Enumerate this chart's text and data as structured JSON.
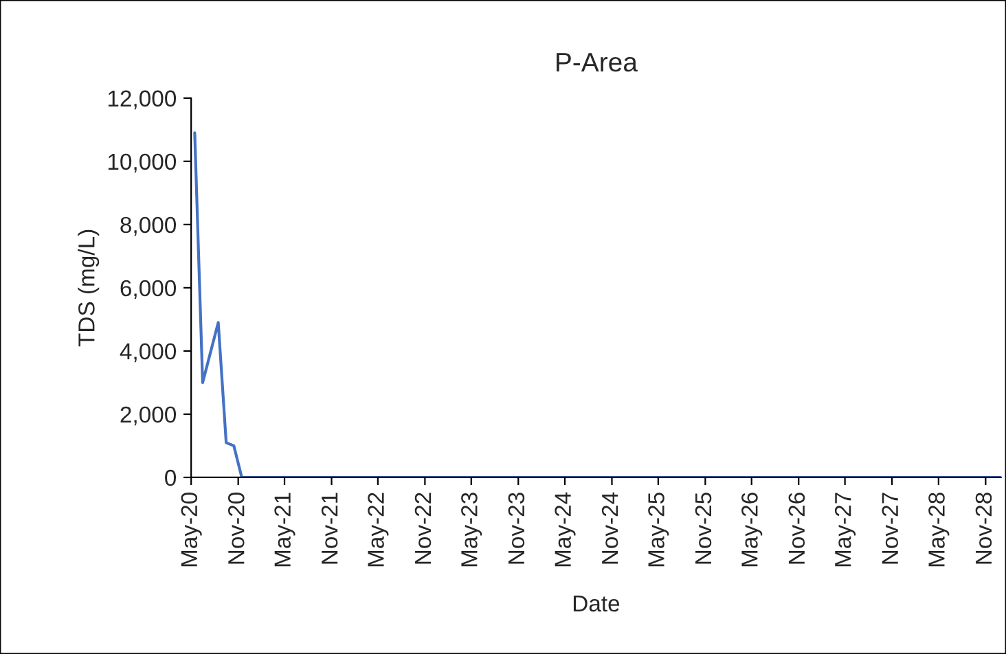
{
  "chart_data": {
    "type": "line",
    "title": "P-Area",
    "xlabel": "Date",
    "ylabel": "TDS (mg/L)",
    "x": [
      "2020-05-15",
      "2020-06-15",
      "2020-08-15",
      "2020-09-15",
      "2020-10-15",
      "2020-11-15",
      "2028-12-31"
    ],
    "series": [
      {
        "color": "#4472c4",
        "values": [
          10900,
          3000,
          4900,
          1100,
          1000,
          0,
          0
        ]
      }
    ],
    "xlim": [
      "2020-05-01",
      "2028-12-31"
    ],
    "xticks": [
      {
        "value": "2020-05-01",
        "label": "May-20"
      },
      {
        "value": "2020-11-01",
        "label": "Nov-20"
      },
      {
        "value": "2021-05-01",
        "label": "May-21"
      },
      {
        "value": "2021-11-01",
        "label": "Nov-21"
      },
      {
        "value": "2022-05-01",
        "label": "May-22"
      },
      {
        "value": "2022-11-01",
        "label": "Nov-22"
      },
      {
        "value": "2023-05-01",
        "label": "May-23"
      },
      {
        "value": "2023-11-01",
        "label": "Nov-23"
      },
      {
        "value": "2024-05-01",
        "label": "May-24"
      },
      {
        "value": "2024-11-01",
        "label": "Nov-24"
      },
      {
        "value": "2025-05-01",
        "label": "May-25"
      },
      {
        "value": "2025-11-01",
        "label": "Nov-25"
      },
      {
        "value": "2026-05-01",
        "label": "May-26"
      },
      {
        "value": "2026-11-01",
        "label": "Nov-26"
      },
      {
        "value": "2027-05-01",
        "label": "May-27"
      },
      {
        "value": "2027-11-01",
        "label": "Nov-27"
      },
      {
        "value": "2028-05-01",
        "label": "May-28"
      },
      {
        "value": "2028-11-01",
        "label": "Nov-28"
      }
    ],
    "ylim": [
      0,
      12000
    ],
    "yticks": [
      {
        "value": 0,
        "label": "0"
      },
      {
        "value": 2000,
        "label": "2,000"
      },
      {
        "value": 4000,
        "label": "4,000"
      },
      {
        "value": 6000,
        "label": "6,000"
      },
      {
        "value": 8000,
        "label": "8,000"
      },
      {
        "value": 10000,
        "label": "10,000"
      },
      {
        "value": 12000,
        "label": "12,000"
      }
    ],
    "grid": false,
    "marker": "none",
    "line_style": "solid"
  }
}
